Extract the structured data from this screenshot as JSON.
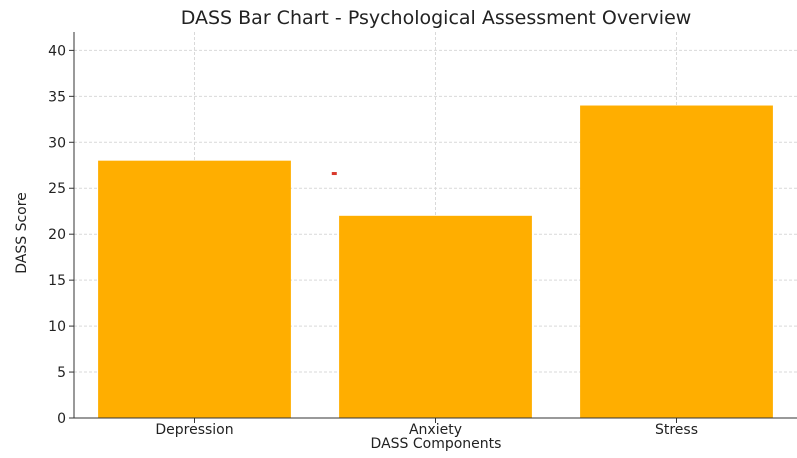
{
  "chart_data": {
    "type": "bar",
    "title": "DASS Bar Chart - Psychological Assessment Overview",
    "xlabel": "DASS Components",
    "ylabel": "DASS Score",
    "categories": [
      "Depression",
      "Anxiety",
      "Stress"
    ],
    "values": [
      28,
      22,
      34
    ],
    "ylim": [
      0,
      42
    ],
    "yticks": [
      0,
      5,
      10,
      15,
      20,
      25,
      30,
      35,
      40
    ],
    "grid": true,
    "bar_color": "#FFAE00",
    "marker_color": "#D9392B",
    "marker": {
      "x_category": "Anxiety",
      "x_offset": -0.42,
      "y": 26.6
    }
  }
}
